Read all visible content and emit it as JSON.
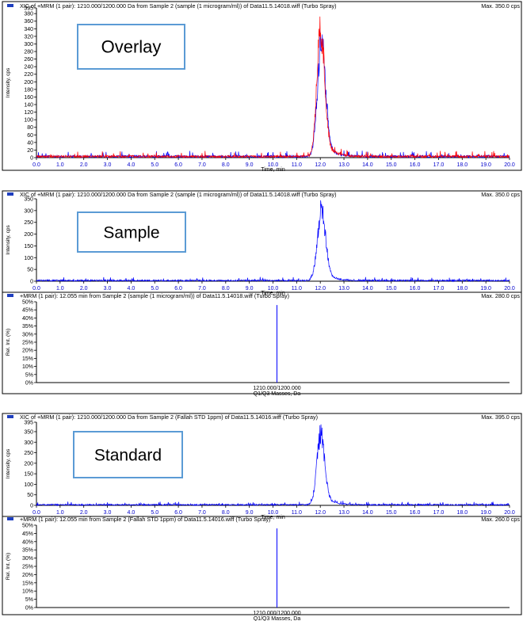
{
  "colors": {
    "frame": "#000000",
    "trace_blue": "#0000ff",
    "trace_red": "#ff0000",
    "tick_label": "#0000cc",
    "label_box_border": "#5b9bd5"
  },
  "chart_data": [
    {
      "id": "overlay-xic",
      "type": "line",
      "title": "XIC of +MRM (1 pair): 1210.000/1200.000 Da  from Sample 2 (sample (1 microgram/ml)) of Data11.5.14018.wiff (Turbo Spray)",
      "max_label": "Max. 350.0 cps",
      "box_label": "Overlay",
      "xlabel": "Time, min",
      "ylabel": "Intensity, cps",
      "xlim": [
        0,
        20
      ],
      "ylim": [
        0,
        395
      ],
      "xticks": [
        "0.0",
        "1.0",
        "2.0",
        "3.0",
        "4.0",
        "5.0",
        "6.0",
        "7.0",
        "8.0",
        "9.0",
        "10.0",
        "11.0",
        "12.0",
        "13.0",
        "14.0",
        "15.0",
        "16.0",
        "17.0",
        "18.0",
        "19.0",
        "20.0"
      ],
      "yticks": [
        "0",
        "20",
        "40",
        "60",
        "80",
        "100",
        "120",
        "140",
        "160",
        "180",
        "200",
        "220",
        "240",
        "260",
        "280",
        "300",
        "320",
        "340",
        "360",
        "380",
        "395"
      ],
      "series": [
        {
          "color": "blue",
          "peak_center": 12.05,
          "peak_height": 350,
          "peak_width": 0.17,
          "noise": 6
        },
        {
          "color": "red",
          "peak_center": 12.02,
          "peak_height": 390,
          "peak_width": 0.16,
          "noise": 6
        }
      ]
    },
    {
      "id": "sample-xic",
      "type": "line",
      "title": "XIC of +MRM (1 pair): 1210.000/1200.000 Da  from Sample 2 (sample (1 microgram/ml)) of Data11.5.14018.wiff (Turbo Spray)",
      "max_label": "Max. 350.0 cps",
      "box_label": "Sample",
      "xlabel": "Time, min",
      "ylabel": "Intensity, cps",
      "xlim": [
        0,
        20
      ],
      "ylim": [
        0,
        350
      ],
      "xticks": [
        "0.0",
        "1.0",
        "2.0",
        "3.0",
        "4.0",
        "5.0",
        "6.0",
        "7.0",
        "8.0",
        "9.0",
        "10.0",
        "11.0",
        "12.0",
        "13.0",
        "14.0",
        "15.0",
        "16.0",
        "17.0",
        "18.0",
        "19.0",
        "20.0"
      ],
      "yticks": [
        "0",
        "50",
        "100",
        "150",
        "200",
        "250",
        "300",
        "350"
      ],
      "series": [
        {
          "color": "blue",
          "peak_center": 12.05,
          "peak_height": 345,
          "peak_width": 0.17,
          "noise": 6
        }
      ]
    },
    {
      "id": "sample-ms",
      "type": "bar",
      "title": "+MRM (1 pair): 12.055 min from Sample 2 (sample (1 microgram/ml)) of Data11.5.14018.wiff (Turbo Spray)",
      "max_label": "Max. 280.0 cps",
      "xlabel": "Q1/Q3 Masses, Da",
      "ylabel": "Rel. Int. (%)",
      "ylim": [
        0,
        50
      ],
      "yticks": [
        "0%",
        "5%",
        "10%",
        "15%",
        "20%",
        "25%",
        "30%",
        "35%",
        "40%",
        "45%",
        "50%"
      ],
      "categories": [
        "1210.000/1200.000"
      ],
      "values": [
        48
      ]
    },
    {
      "id": "standard-xic",
      "type": "line",
      "title": "XIC of +MRM (1 pair): 1210.000/1200.000 Da  from Sample 2 (Fallah STD 1ppm) of Data11.5.14016.wiff (Turbo Spray)",
      "max_label": "Max. 395.0 cps",
      "box_label": "Standard",
      "xlabel": "Time, min",
      "ylabel": "Intensity, cps",
      "xlim": [
        0,
        20
      ],
      "ylim": [
        0,
        395
      ],
      "xticks": [
        "0.0",
        "1.0",
        "2.0",
        "3.0",
        "4.0",
        "5.0",
        "6.0",
        "7.0",
        "8.0",
        "9.0",
        "10.0",
        "11.0",
        "12.0",
        "13.0",
        "14.0",
        "15.0",
        "16.0",
        "17.0",
        "18.0",
        "19.0",
        "20.0"
      ],
      "yticks": [
        "0",
        "50",
        "100",
        "150",
        "200",
        "250",
        "300",
        "350",
        "395"
      ],
      "series": [
        {
          "color": "blue",
          "peak_center": 12.02,
          "peak_height": 390,
          "peak_width": 0.16,
          "noise": 6
        }
      ]
    },
    {
      "id": "standard-ms",
      "type": "bar",
      "title": "+MRM (1 pair): 12.055 min from Sample 2 (Fallah STD 1ppm) of Data11.5.14016.wiff (Turbo Spray)",
      "max_label": "Max. 260.0 cps",
      "xlabel": "Q1/Q3 Masses, Da",
      "ylabel": "Rel. Int. (%)",
      "ylim": [
        0,
        50
      ],
      "yticks": [
        "0%",
        "5%",
        "10%",
        "15%",
        "20%",
        "25%",
        "30%",
        "35%",
        "40%",
        "45%",
        "50%"
      ],
      "categories": [
        "1210.000/1200.000"
      ],
      "values": [
        48
      ]
    }
  ]
}
